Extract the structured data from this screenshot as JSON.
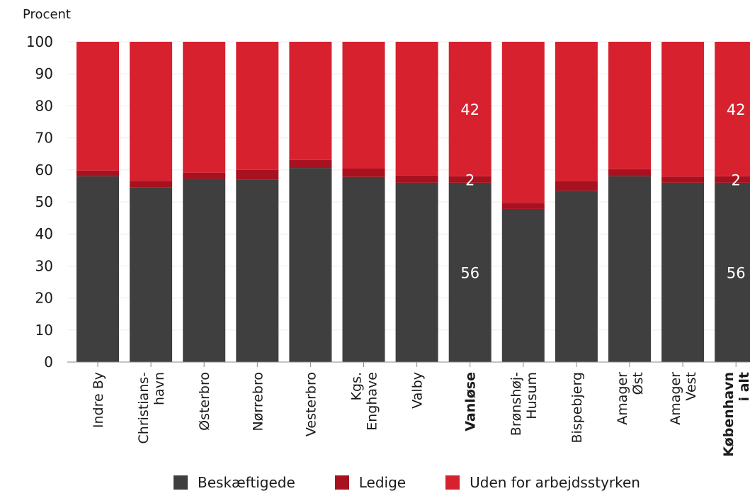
{
  "chart_data": {
    "type": "bar",
    "stacked": true,
    "ylabel": "Procent",
    "ylim": [
      0,
      100
    ],
    "yticks": [
      0,
      10,
      20,
      30,
      40,
      50,
      60,
      70,
      80,
      90,
      100
    ],
    "categories": [
      {
        "label": [
          "Indre By"
        ],
        "bold": false
      },
      {
        "label": [
          "Christians-",
          "havn"
        ],
        "bold": false
      },
      {
        "label": [
          "Østerbro"
        ],
        "bold": false
      },
      {
        "label": [
          "Nørrebro"
        ],
        "bold": false
      },
      {
        "label": [
          "Vesterbro"
        ],
        "bold": false
      },
      {
        "label": [
          "Kgs.",
          "Enghave"
        ],
        "bold": false
      },
      {
        "label": [
          "Valby"
        ],
        "bold": false
      },
      {
        "label": [
          "Vanløse"
        ],
        "bold": true
      },
      {
        "label": [
          "Brønshøj-",
          "Husum"
        ],
        "bold": false
      },
      {
        "label": [
          "Bispebjerg"
        ],
        "bold": false
      },
      {
        "label": [
          "Amager",
          "Øst"
        ],
        "bold": false
      },
      {
        "label": [
          "Amager",
          "Vest"
        ],
        "bold": false
      },
      {
        "label": [
          "København",
          "i alt"
        ],
        "bold": true
      }
    ],
    "series": [
      {
        "name": "Beskæftigede",
        "color": "#3f3f3f",
        "values": [
          58,
          54.5,
          57.2,
          57,
          60.6,
          57.8,
          56,
          56,
          47.8,
          53.5,
          58,
          56,
          56
        ]
      },
      {
        "name": "Ledige",
        "color": "#a8111f",
        "values": [
          1.8,
          2.1,
          1.9,
          3,
          2.5,
          2.6,
          2.2,
          2,
          1.9,
          3,
          2.2,
          1.9,
          2
        ]
      },
      {
        "name": "Uden for arbejdsstyrken",
        "color": "#d7212f",
        "values": [
          40.2,
          43.4,
          40.9,
          40,
          36.9,
          39.6,
          41.8,
          42,
          50.3,
          43.5,
          39.8,
          42.1,
          42
        ]
      }
    ],
    "data_labels": [
      {
        "category": 7,
        "series": 0,
        "text": "56"
      },
      {
        "category": 7,
        "series": 1,
        "text": "2"
      },
      {
        "category": 7,
        "series": 2,
        "text": "42"
      },
      {
        "category": 12,
        "series": 0,
        "text": "56"
      },
      {
        "category": 12,
        "series": 1,
        "text": "2"
      },
      {
        "category": 12,
        "series": 2,
        "text": "42"
      }
    ],
    "legend_position": "bottom",
    "grid": true
  }
}
